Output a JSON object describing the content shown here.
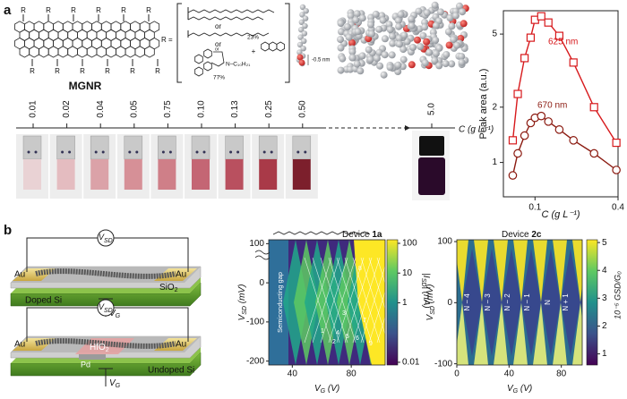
{
  "panel_a": {
    "label": "a",
    "molecule_label": "MGNR",
    "r": "R",
    "r_equals": "R =",
    "or": "or",
    "percent_major": "77%",
    "percent_minor": "23%",
    "imide_chain": "N–C₁₀H₂₁",
    "distance": "-0.5 nm",
    "concentrations": [
      "0.01",
      "0.02",
      "0.04",
      "0.05",
      "0.75",
      "0.10",
      "0.13",
      "0.25",
      "0.50",
      "5.0"
    ],
    "conc_axis_label": "C (g L⁻¹)"
  },
  "chart_data": {
    "type": "line",
    "y_label": "Peak area (a.u.)",
    "x_label": "C (g L⁻¹)",
    "x": [
      0.069,
      0.075,
      0.084,
      0.093,
      0.1,
      0.111,
      0.125,
      0.15,
      0.19,
      0.268,
      0.389
    ],
    "series": [
      {
        "name": "625 nm",
        "color": "#d7191c",
        "marker": "square",
        "values": [
          1.32,
          2.36,
          3.7,
          4.78,
          5.98,
          6.25,
          5.78,
          4.89,
          3.5,
          2.0,
          1.28
        ]
      },
      {
        "name": "670 nm",
        "color": "#8b1a10",
        "marker": "circle",
        "values": [
          0.85,
          1.12,
          1.4,
          1.64,
          1.75,
          1.79,
          1.67,
          1.51,
          1.32,
          1.12,
          0.91
        ]
      }
    ],
    "xlim": [
      0.059,
      0.4
    ],
    "xticks": [
      0.1,
      0.4
    ],
    "ylim": [
      0.65,
      6.7
    ],
    "yticks": [
      1,
      2,
      5
    ],
    "log_x": true,
    "log_y": true
  },
  "panel_b": {
    "label": "b",
    "device_top": {
      "vsd": {
        "main": "V",
        "sub": "SD"
      },
      "au": "Au",
      "oxide": {
        "main": "SiO",
        "sub": "2"
      },
      "substrate": "Doped Si",
      "vg": {
        "main": "V",
        "sub": "G"
      }
    },
    "device_bottom": {
      "vsd": {
        "main": "V",
        "sub": "SD"
      },
      "au": "Au",
      "oxide": {
        "main": "HfO",
        "sub": "2"
      },
      "gate": "Pd",
      "substrate": "Undoped Si",
      "vg": {
        "main": "V",
        "sub": "G"
      }
    },
    "map_1": {
      "title": {
        "main": "Device ",
        "bold": "1a"
      },
      "y_label": {
        "main": "V",
        "sub": "SD",
        "rest": " (mV)"
      },
      "x_label": {
        "main": "V",
        "sub": "G",
        "rest": " (V)"
      },
      "cbar_label": {
        "main": "|I",
        "sub": "SD",
        "rest": "| (nA)"
      },
      "gap_label": "Semiconducting gap",
      "state_labels": [
        "1",
        "2",
        "3",
        "4",
        "5",
        "6",
        "7",
        "8",
        "9"
      ],
      "xlim": [
        24,
        103
      ],
      "xticks": [
        40,
        80
      ],
      "ylim": [
        -210,
        110
      ],
      "yticks": [
        100,
        0,
        -100,
        -200
      ],
      "clim": [
        0.0081,
        132
      ],
      "cticks": [
        100,
        10,
        1,
        0.01
      ],
      "log_c": true
    },
    "map_2": {
      "title": {
        "main": "Device ",
        "bold": "2c"
      },
      "y_label": {
        "main": "V",
        "sub": "SD",
        "rest": " (mV)"
      },
      "x_label": {
        "main": "V",
        "sub": "G",
        "rest": " (V)"
      },
      "cbar_label": "10⁻⁵ GSD/G₀",
      "charge_labels": [
        "N − 4",
        "N − 3",
        "N − 2",
        "N − 1",
        "N",
        "N + 1"
      ],
      "xlim": [
        0,
        96
      ],
      "xticks": [
        0,
        40,
        80
      ],
      "ylim": [
        -102,
        103
      ],
      "yticks": [
        100,
        0,
        -100
      ],
      "clim": [
        0.6,
        5.1
      ],
      "cticks": [
        5,
        4,
        3,
        2,
        1
      ]
    }
  }
}
